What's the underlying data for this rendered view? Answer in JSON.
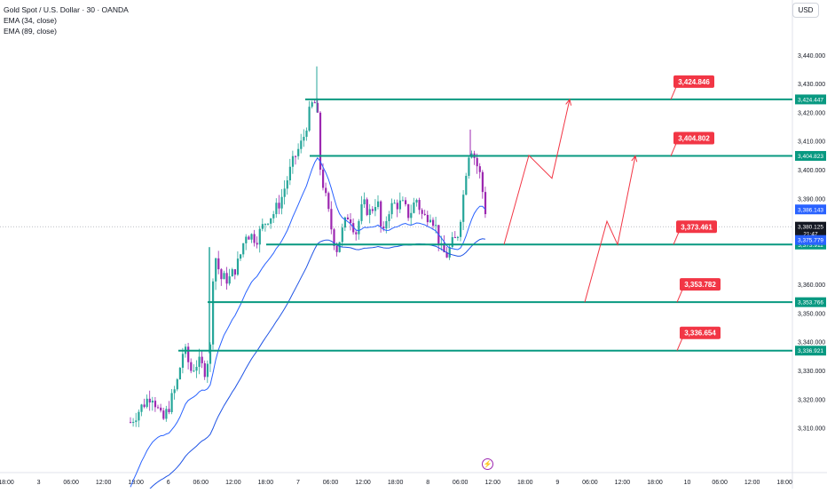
{
  "legend": {
    "title": "Gold Spot / U.S. Dollar · 30 · OANDA",
    "ema_fast": "EMA (34, close)",
    "ema_slow": "EMA (89, close)"
  },
  "currency_button": "USD",
  "price_axis": {
    "ticks": [
      "3,440.000",
      "3,430.000",
      "3,420.000",
      "3,410.000",
      "3,400.000",
      "3,390.000",
      "3,360.000",
      "3,350.000",
      "3,340.000",
      "3,330.000",
      "3,320.000",
      "3,310.000"
    ],
    "tick_values": [
      3440,
      3430,
      3420,
      3410,
      3400,
      3390,
      3360,
      3350,
      3340,
      3330,
      3320,
      3310
    ]
  },
  "time_axis": {
    "labels": [
      "18:00",
      "3",
      "06:00",
      "12:00",
      "18:00",
      "6",
      "06:00",
      "12:00",
      "18:00",
      "7",
      "06:00",
      "12:00",
      "18:00",
      "8",
      "06:00",
      "12:00",
      "18:00",
      "9",
      "06:00",
      "12:00",
      "18:00",
      "10",
      "06:00",
      "12:00",
      "18:00"
    ]
  },
  "levels": [
    {
      "callout": "3,424.846",
      "axis_tag": "3,424.447",
      "value": 3424.5
    },
    {
      "callout": "3,404.802",
      "axis_tag": "3,404.823",
      "value": 3404.8
    },
    {
      "callout": "3,373.461",
      "axis_tag": "3,373.911",
      "value": 3373.9
    },
    {
      "callout": "3,353.782",
      "axis_tag": "3,353.766",
      "value": 3353.8
    },
    {
      "callout": "3,336.654",
      "axis_tag": "3,336.921",
      "value": 3336.9
    }
  ],
  "axis_tags": {
    "ema_fast": "3,386.143",
    "price": "3,380.125",
    "countdown": "21:47",
    "ema_slow": "3,375.779"
  },
  "chart_data": {
    "type": "candlestick",
    "timeframe": "30",
    "ema_fast_last": 3386.143,
    "ema_slow_last": 3375.779,
    "last_price": 3380.125,
    "price_range": [
      3308,
      3446
    ],
    "projection_path_1": [
      3373.9,
      3405,
      3397,
      3424.5
    ],
    "projection_path_2": [
      3353.8,
      3382,
      3373.9,
      3404.8
    ]
  },
  "colors": {
    "up": "#26a69a",
    "down": "#9c27b0",
    "level": "#089981",
    "callout": "#f23645",
    "ema_fast": "#2962ff",
    "ema_slow": "#1e53e5",
    "price_tag": "#131722",
    "ema_tag": "#2962ff"
  }
}
